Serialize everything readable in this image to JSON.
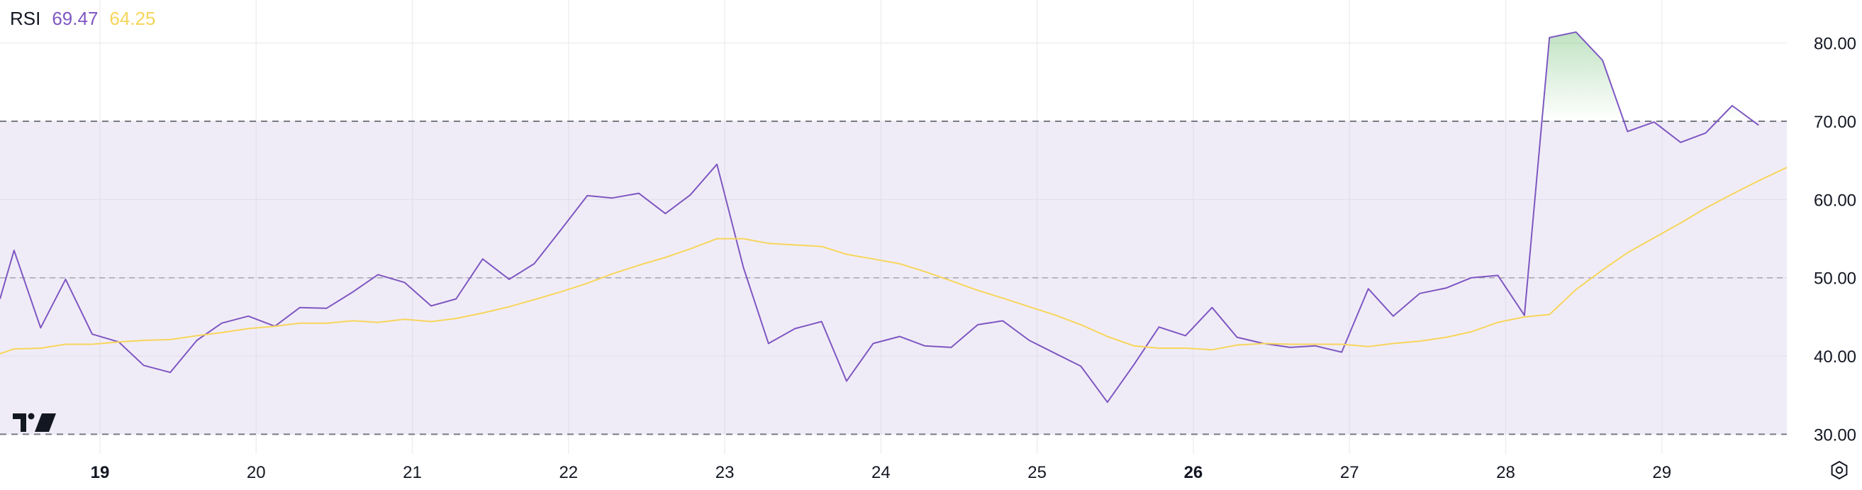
{
  "legend": {
    "name": "RSI",
    "rsi_value": "69.47",
    "ma_value": "64.25"
  },
  "colors": {
    "rsi_line": "#7e57c2",
    "ma_line": "#f7d55c",
    "band_fill": "#efebf7",
    "band_border": "#787b86",
    "overbought_fill": "#4caf50",
    "axis_text": "#131722",
    "grid": "#efeff2"
  },
  "icons": {
    "logo": "tradingview-logo-icon",
    "settings": "settings-gear-icon"
  },
  "chart_data": {
    "type": "line",
    "grid": true,
    "y_axis_position": "right",
    "ylim": [
      27.5,
      85.5
    ],
    "y_ticks": [
      "30.00",
      "40.00",
      "50.00",
      "60.00",
      "70.00",
      "80.00"
    ],
    "x_range": [
      18.36,
      29.8
    ],
    "x_ticks": [
      {
        "x": 19,
        "label": "19",
        "bold": true
      },
      {
        "x": 20,
        "label": "20",
        "bold": false
      },
      {
        "x": 21,
        "label": "21",
        "bold": false
      },
      {
        "x": 22,
        "label": "22",
        "bold": false
      },
      {
        "x": 23,
        "label": "23",
        "bold": false
      },
      {
        "x": 24,
        "label": "24",
        "bold": false
      },
      {
        "x": 25,
        "label": "25",
        "bold": false
      },
      {
        "x": 26,
        "label": "26",
        "bold": true
      },
      {
        "x": 27,
        "label": "27",
        "bold": false
      },
      {
        "x": 28,
        "label": "28",
        "bold": false
      },
      {
        "x": 29,
        "label": "29",
        "bold": false
      }
    ],
    "bands": {
      "upper": 70,
      "middle": 50,
      "lower": 30
    },
    "series": [
      {
        "points": [
          [
            18.36,
            47.3
          ],
          [
            18.45,
            53.5
          ],
          [
            18.62,
            43.6
          ],
          [
            18.78,
            49.8
          ],
          [
            18.95,
            42.8
          ],
          [
            19.12,
            41.8
          ],
          [
            19.28,
            38.8
          ],
          [
            19.45,
            37.9
          ],
          [
            19.62,
            42.0
          ],
          [
            19.78,
            44.2
          ],
          [
            19.95,
            45.1
          ],
          [
            20.12,
            43.8
          ],
          [
            20.28,
            46.2
          ],
          [
            20.45,
            46.1
          ],
          [
            20.62,
            48.2
          ],
          [
            20.78,
            50.4
          ],
          [
            20.95,
            49.4
          ],
          [
            21.12,
            46.4
          ],
          [
            21.28,
            47.3
          ],
          [
            21.45,
            52.4
          ],
          [
            21.62,
            49.8
          ],
          [
            21.78,
            51.8
          ],
          [
            21.95,
            56.1
          ],
          [
            22.12,
            60.5
          ],
          [
            22.28,
            60.2
          ],
          [
            22.45,
            60.8
          ],
          [
            22.62,
            58.2
          ],
          [
            22.78,
            60.6
          ],
          [
            22.95,
            64.5
          ],
          [
            23.12,
            51.3
          ],
          [
            23.28,
            41.6
          ],
          [
            23.45,
            43.5
          ],
          [
            23.62,
            44.4
          ],
          [
            23.78,
            36.8
          ],
          [
            23.95,
            41.6
          ],
          [
            24.12,
            42.5
          ],
          [
            24.28,
            41.3
          ],
          [
            24.45,
            41.1
          ],
          [
            24.62,
            44.0
          ],
          [
            24.78,
            44.5
          ],
          [
            24.95,
            42.0
          ],
          [
            25.12,
            40.3
          ],
          [
            25.28,
            38.7
          ],
          [
            25.45,
            34.1
          ],
          [
            25.62,
            38.9
          ],
          [
            25.78,
            43.7
          ],
          [
            25.95,
            42.6
          ],
          [
            26.12,
            46.2
          ],
          [
            26.28,
            42.4
          ],
          [
            26.45,
            41.6
          ],
          [
            26.62,
            41.1
          ],
          [
            26.78,
            41.3
          ],
          [
            26.95,
            40.5
          ],
          [
            27.12,
            48.6
          ],
          [
            27.28,
            45.1
          ],
          [
            27.45,
            48.0
          ],
          [
            27.62,
            48.7
          ],
          [
            27.78,
            50.0
          ],
          [
            27.95,
            50.3
          ],
          [
            28.12,
            45.2
          ],
          [
            28.28,
            80.7
          ],
          [
            28.45,
            81.4
          ],
          [
            28.62,
            77.8
          ],
          [
            28.78,
            68.7
          ],
          [
            28.95,
            69.9
          ],
          [
            29.12,
            67.3
          ],
          [
            29.28,
            68.5
          ],
          [
            29.45,
            72.0
          ],
          [
            29.62,
            69.5
          ]
        ]
      },
      {
        "points": [
          [
            18.36,
            40.3
          ],
          [
            18.45,
            40.9
          ],
          [
            18.62,
            41.0
          ],
          [
            18.78,
            41.5
          ],
          [
            18.95,
            41.5
          ],
          [
            19.12,
            41.8
          ],
          [
            19.28,
            42.0
          ],
          [
            19.45,
            42.1
          ],
          [
            19.62,
            42.6
          ],
          [
            19.78,
            43.0
          ],
          [
            19.95,
            43.5
          ],
          [
            20.12,
            43.8
          ],
          [
            20.28,
            44.2
          ],
          [
            20.45,
            44.2
          ],
          [
            20.62,
            44.5
          ],
          [
            20.78,
            44.3
          ],
          [
            20.95,
            44.7
          ],
          [
            21.12,
            44.4
          ],
          [
            21.28,
            44.8
          ],
          [
            21.45,
            45.5
          ],
          [
            21.62,
            46.3
          ],
          [
            21.78,
            47.2
          ],
          [
            21.95,
            48.2
          ],
          [
            22.12,
            49.3
          ],
          [
            22.28,
            50.5
          ],
          [
            22.45,
            51.6
          ],
          [
            22.62,
            52.6
          ],
          [
            22.78,
            53.7
          ],
          [
            22.95,
            55.0
          ],
          [
            23.12,
            55.0
          ],
          [
            23.28,
            54.4
          ],
          [
            23.45,
            54.2
          ],
          [
            23.62,
            54.0
          ],
          [
            23.78,
            53.0
          ],
          [
            23.95,
            52.4
          ],
          [
            24.12,
            51.8
          ],
          [
            24.28,
            50.8
          ],
          [
            24.45,
            49.6
          ],
          [
            24.62,
            48.4
          ],
          [
            24.78,
            47.4
          ],
          [
            24.95,
            46.3
          ],
          [
            25.12,
            45.2
          ],
          [
            25.28,
            44.0
          ],
          [
            25.45,
            42.5
          ],
          [
            25.62,
            41.3
          ],
          [
            25.78,
            41.0
          ],
          [
            25.95,
            41.0
          ],
          [
            26.12,
            40.8
          ],
          [
            26.28,
            41.4
          ],
          [
            26.45,
            41.6
          ],
          [
            26.62,
            41.5
          ],
          [
            26.78,
            41.5
          ],
          [
            26.95,
            41.5
          ],
          [
            27.12,
            41.2
          ],
          [
            27.28,
            41.6
          ],
          [
            27.45,
            41.9
          ],
          [
            27.62,
            42.4
          ],
          [
            27.78,
            43.1
          ],
          [
            27.95,
            44.3
          ],
          [
            28.12,
            45.0
          ],
          [
            28.28,
            45.3
          ],
          [
            28.45,
            48.5
          ],
          [
            28.62,
            51.0
          ],
          [
            28.78,
            53.2
          ],
          [
            28.95,
            55.1
          ],
          [
            29.12,
            57.0
          ],
          [
            29.28,
            58.9
          ],
          [
            29.45,
            60.7
          ],
          [
            29.62,
            62.4
          ],
          [
            29.8,
            64.1
          ]
        ]
      }
    ]
  }
}
